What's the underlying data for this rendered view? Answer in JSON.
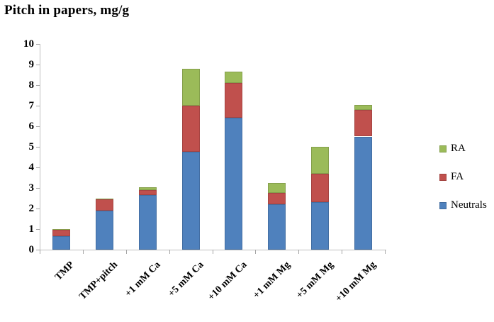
{
  "title": "Pitch in papers, mg/g",
  "chart_data": {
    "type": "bar",
    "stacked": true,
    "title": "Pitch in papers, mg/g",
    "categories": [
      "TMP",
      "TMP+pitch",
      "+1 mM Ca",
      "+5 mM Ca",
      "+10 mM Ca",
      "+1 mM Mg",
      "+5 mM Mg",
      "+10 mM Mg"
    ],
    "series": [
      {
        "name": "Neutrals",
        "color": "#4F81BD",
        "values": [
          0.65,
          1.9,
          2.65,
          4.75,
          6.4,
          2.2,
          2.3,
          5.5
        ]
      },
      {
        "name": "FA",
        "color": "#C0504D",
        "values": [
          0.3,
          0.55,
          0.25,
          2.25,
          1.7,
          0.55,
          1.4,
          1.3
        ]
      },
      {
        "name": "RA",
        "color": "#9BBB59",
        "values": [
          0.05,
          0.05,
          0.15,
          1.8,
          0.55,
          0.5,
          1.3,
          0.25
        ]
      }
    ],
    "totals": [
      1.0,
      2.5,
      3.05,
      8.8,
      8.65,
      3.25,
      5.0,
      7.05
    ],
    "xlabel": "",
    "ylabel": "",
    "ylim": [
      0,
      10
    ],
    "ytick_labels": [
      "0",
      "1",
      "2",
      "3",
      "4",
      "5",
      "6",
      "7",
      "8",
      "9",
      "10"
    ],
    "grid": false,
    "legend_position": "right"
  },
  "legend": {
    "items": [
      {
        "label": "RA",
        "color": "#9BBB59"
      },
      {
        "label": "FA",
        "color": "#C0504D"
      },
      {
        "label": "Neutrals",
        "color": "#4F81BD"
      }
    ]
  },
  "colors": {
    "axis_line": "#BFBFBF",
    "tick": "#A6A6A6",
    "background": "#FFFFFF",
    "text": "#000000"
  }
}
